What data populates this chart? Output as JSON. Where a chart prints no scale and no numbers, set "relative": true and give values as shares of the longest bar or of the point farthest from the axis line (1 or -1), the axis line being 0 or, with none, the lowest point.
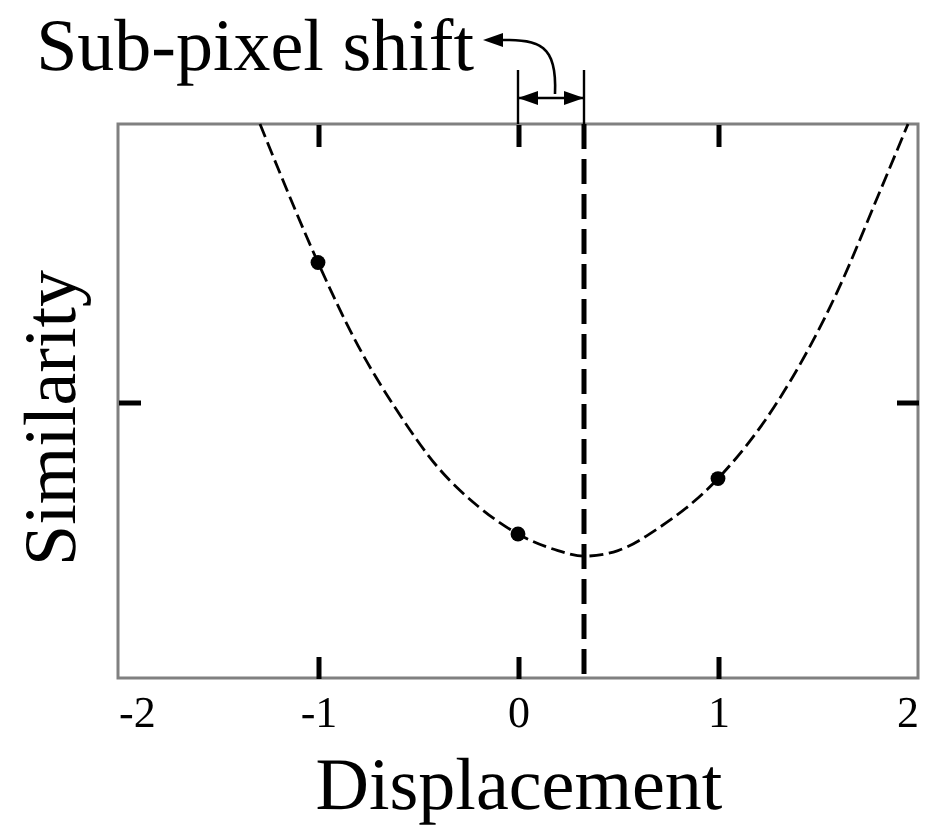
{
  "chart_data": {
    "type": "scatter",
    "xlabel": "Displacement",
    "ylabel": "Similarity",
    "relative": true,
    "xlim": [
      -2,
      2
    ],
    "xticks": [
      -2,
      -1,
      0,
      1,
      2
    ],
    "series": [
      {
        "type": "line",
        "color": "#000000",
        "line_style": "dashed",
        "x": [
          -1.29,
          -1.2,
          -1.0,
          -0.8,
          -0.6,
          -0.4,
          -0.2,
          0,
          0.2,
          0.33,
          0.5,
          0.7,
          1.0,
          1.3,
          1.6,
          1.8,
          1.95
        ],
        "values": [
          1.0,
          0.92,
          0.75,
          0.6,
          0.48,
          0.38,
          0.31,
          0.26,
          0.23,
          0.22,
          0.23,
          0.27,
          0.36,
          0.5,
          0.7,
          0.87,
          1.0
        ]
      },
      {
        "color": "#000000",
        "marker": "circle",
        "x": [
          -1,
          0,
          1
        ],
        "values": [
          0.75,
          0.26,
          0.36
        ]
      }
    ],
    "ref_lines": [
      {
        "axis": "x",
        "value": 0.33,
        "color": "#000000",
        "line_style": "dashed"
      }
    ],
    "annotations": [
      "Sub-pixel shift"
    ]
  }
}
